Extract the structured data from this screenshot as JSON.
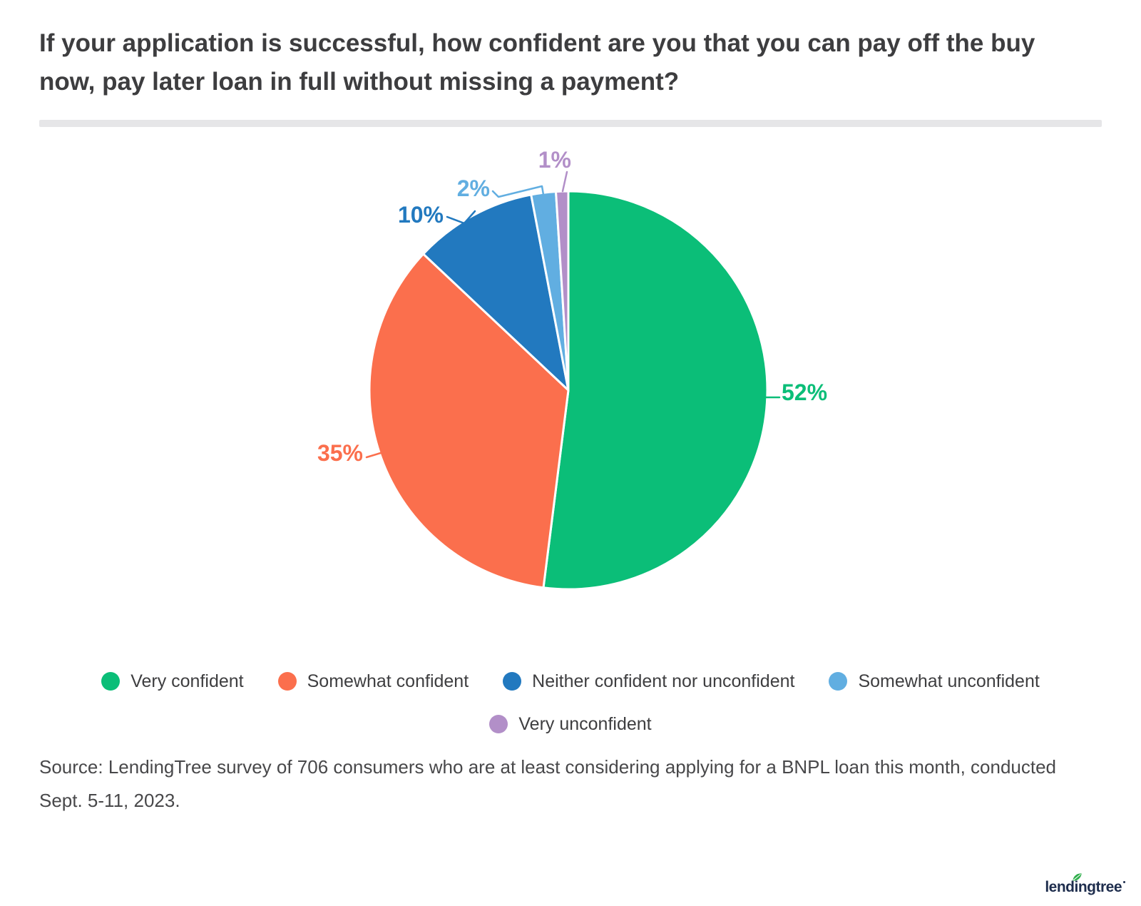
{
  "page": {
    "title": "If your application is successful, how confident are you that you can pay off the buy\nnow, pay later loan in full without missing a payment?"
  },
  "chart_data": {
    "type": "pie",
    "title": "If your application is successful, how confident are you that you can pay off the buy now, pay later loan in full without missing a payment?",
    "labels": [
      "Very confident",
      "Somewhat confident",
      "Neither confident nor unconfident",
      "Somewhat unconfident",
      "Very unconfident"
    ],
    "values": [
      52,
      35,
      10,
      2,
      1
    ],
    "value_labels": [
      "52%",
      "35%",
      "10%",
      "2%",
      "1%"
    ],
    "unit": "%",
    "colors": [
      "#0BBE78",
      "#FB6F4D",
      "#2279BF",
      "#61AEE1",
      "#B28FC8"
    ],
    "start_angle": "12 o'clock",
    "direction": "clockwise",
    "legend_position": "bottom"
  },
  "source": {
    "text": "Source: LendingTree survey of 706 consumers who are at least considering applying for a BNPL loan this month, conducted Sept. 5-11, 2023."
  },
  "logo": {
    "text": "lendingtree"
  }
}
